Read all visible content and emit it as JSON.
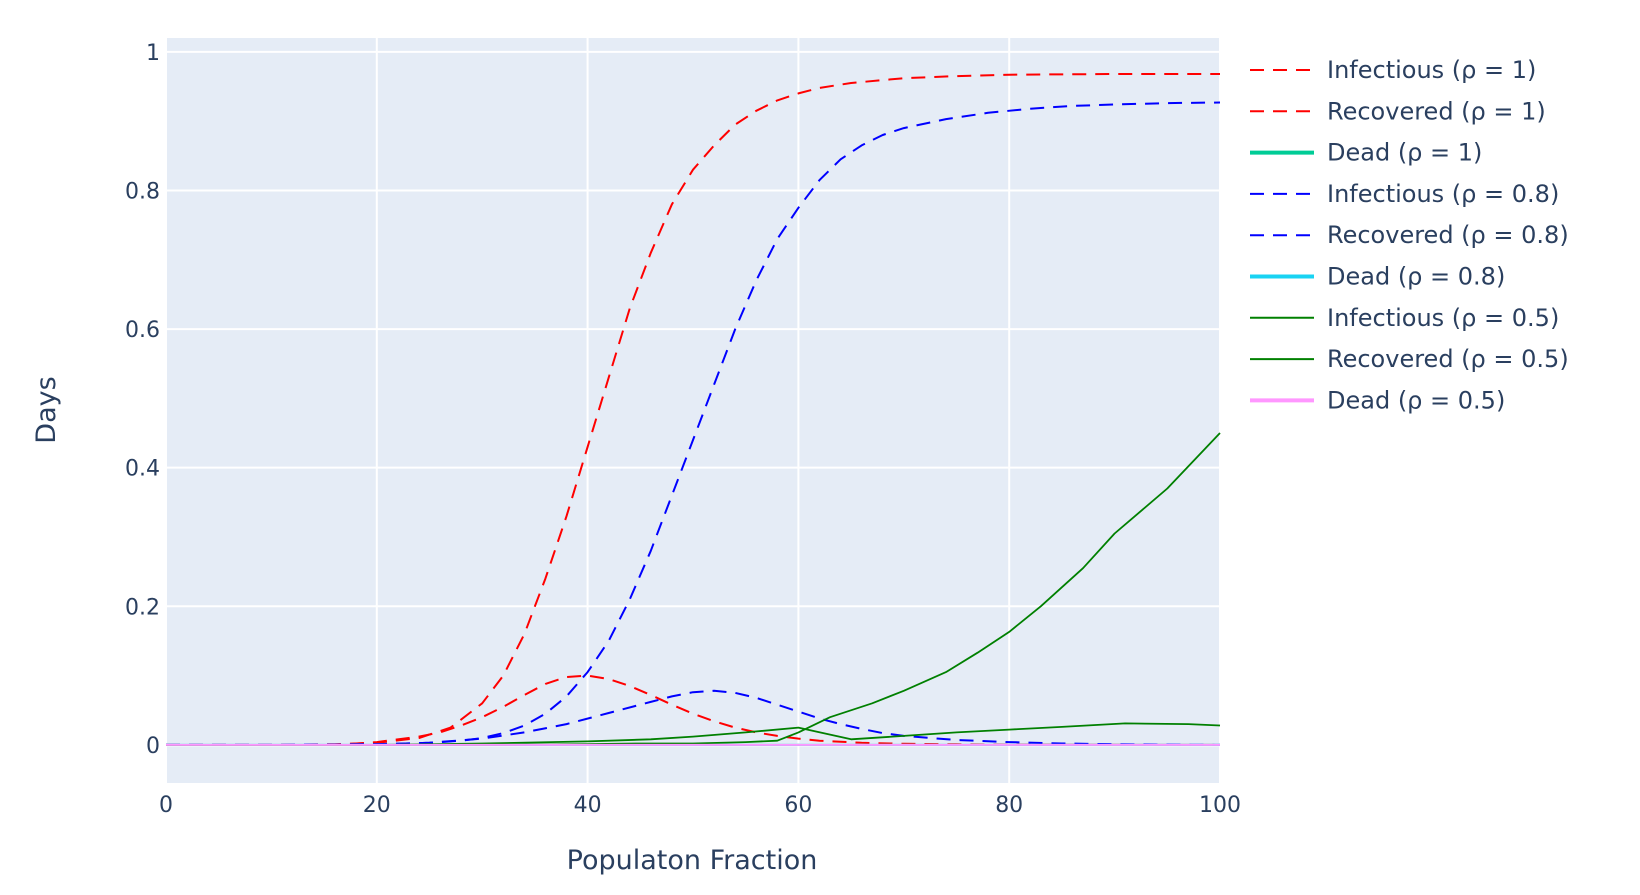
{
  "chart_data": {
    "type": "line",
    "title": "",
    "xlabel": "Populaton Fraction",
    "ylabel": "Days",
    "xlim": [
      0,
      100
    ],
    "ylim": [
      -0.055,
      1.02
    ],
    "x_ticks": [
      0,
      20,
      40,
      60,
      80,
      100
    ],
    "y_ticks": [
      0,
      0.2,
      0.4,
      0.6,
      0.8,
      1
    ],
    "x_tick_labels": [
      "0",
      "20",
      "40",
      "60",
      "80",
      "100"
    ],
    "y_tick_labels": [
      "0",
      "0.2",
      "0.4",
      "0.6",
      "0.8",
      "1"
    ],
    "grid": true,
    "legend_position": "right",
    "plot_bg": "#e5ecf6",
    "grid_color": "#ffffff",
    "series": [
      {
        "name": "Infectious (ρ  = 1)",
        "color": "#ff0000",
        "dash": "dash",
        "width": 2,
        "x": [
          0,
          8,
          16,
          20,
          24,
          26,
          28,
          30,
          32,
          34,
          36,
          38,
          40,
          42,
          44,
          46,
          48,
          50,
          52,
          54,
          56,
          58,
          60,
          62,
          66,
          70,
          75,
          80,
          85,
          90,
          100
        ],
        "y": [
          0,
          0,
          0,
          0.004,
          0.012,
          0.018,
          0.028,
          0.04,
          0.055,
          0.072,
          0.088,
          0.098,
          0.1,
          0.095,
          0.085,
          0.072,
          0.058,
          0.045,
          0.034,
          0.025,
          0.018,
          0.013,
          0.009,
          0.006,
          0.003,
          0.0015,
          0.0008,
          0.0004,
          0.0002,
          0.0001,
          0
        ]
      },
      {
        "name": "Recovered (ρ  = 1)",
        "color": "#ff0000",
        "dash": "dash",
        "width": 2,
        "x": [
          0,
          10,
          16,
          20,
          24,
          27,
          30,
          32,
          34,
          36,
          38,
          40,
          42,
          44,
          46,
          48,
          50,
          52,
          54,
          56,
          58,
          60,
          62,
          65,
          70,
          75,
          80,
          90,
          100
        ],
        "y": [
          0,
          0,
          0.001,
          0.003,
          0.01,
          0.025,
          0.06,
          0.1,
          0.16,
          0.24,
          0.33,
          0.43,
          0.53,
          0.63,
          0.71,
          0.78,
          0.83,
          0.865,
          0.895,
          0.915,
          0.93,
          0.94,
          0.948,
          0.955,
          0.962,
          0.965,
          0.967,
          0.968,
          0.968
        ]
      },
      {
        "name": "Dead (ρ  = 1)",
        "color": "#00cc96",
        "dash": "solid",
        "width": 2,
        "x": [
          0,
          100
        ],
        "y": [
          0,
          0
        ]
      },
      {
        "name": "Infectious (ρ  = 0.8)",
        "color": "#0000ff",
        "dash": "dash",
        "width": 2,
        "x": [
          0,
          10,
          20,
          25,
          30,
          34,
          38,
          42,
          46,
          48,
          50,
          52,
          54,
          56,
          58,
          60,
          62,
          64,
          66,
          68,
          70,
          75,
          80,
          85,
          90,
          100
        ],
        "y": [
          0,
          0,
          0.001,
          0.003,
          0.009,
          0.018,
          0.03,
          0.046,
          0.062,
          0.07,
          0.076,
          0.078,
          0.075,
          0.068,
          0.058,
          0.048,
          0.038,
          0.03,
          0.023,
          0.017,
          0.013,
          0.007,
          0.004,
          0.002,
          0.001,
          0
        ]
      },
      {
        "name": "Recovered (ρ  = 0.8)",
        "color": "#0000ff",
        "dash": "dash",
        "width": 2,
        "x": [
          0,
          10,
          20,
          25,
          28,
          30,
          32,
          34,
          36,
          38,
          40,
          42,
          44,
          46,
          48,
          50,
          52,
          54,
          56,
          58,
          60,
          62,
          64,
          66,
          68,
          70,
          74,
          78,
          82,
          86,
          90,
          95,
          100
        ],
        "y": [
          0,
          0,
          0.001,
          0.003,
          0.006,
          0.01,
          0.017,
          0.028,
          0.045,
          0.07,
          0.105,
          0.15,
          0.21,
          0.28,
          0.36,
          0.44,
          0.52,
          0.6,
          0.67,
          0.73,
          0.775,
          0.815,
          0.845,
          0.865,
          0.88,
          0.89,
          0.903,
          0.912,
          0.918,
          0.922,
          0.924,
          0.926,
          0.927
        ]
      },
      {
        "name": "Dead (ρ  = 0.8)",
        "color": "#19d3f3",
        "dash": "solid",
        "width": 2,
        "x": [
          0,
          100
        ],
        "y": [
          0,
          0
        ]
      },
      {
        "name": "Infectious (ρ  = 0.5)",
        "color": "#008000",
        "dash": "solid",
        "width": 1.8,
        "x": [
          0,
          10,
          20,
          30,
          40,
          46,
          50,
          55,
          60,
          65,
          70,
          75,
          80,
          85,
          91,
          97,
          100
        ],
        "y": [
          0,
          0,
          0,
          0.002,
          0.005,
          0.008,
          0.012,
          0.018,
          0.025,
          0.008,
          0.013,
          0.018,
          0.022,
          0.026,
          0.031,
          0.03,
          0.028
        ]
      },
      {
        "name": "Recovered (ρ  = 0.5)",
        "color": "#008000",
        "dash": "solid",
        "width": 1.8,
        "x": [
          0,
          10,
          20,
          30,
          40,
          45,
          50,
          55,
          58,
          60,
          63,
          67,
          70,
          74,
          77,
          80,
          83,
          87,
          90,
          95,
          100
        ],
        "y": [
          0,
          0,
          0,
          0,
          0.001,
          0.002,
          0.002,
          0.004,
          0.006,
          0.018,
          0.04,
          0.06,
          0.078,
          0.105,
          0.133,
          0.163,
          0.2,
          0.255,
          0.305,
          0.37,
          0.45
        ]
      },
      {
        "name": "Dead (ρ  = 0.5)",
        "color": "#ff97ff",
        "dash": "solid",
        "width": 2,
        "x": [
          0,
          100
        ],
        "y": [
          0,
          0
        ]
      }
    ]
  }
}
